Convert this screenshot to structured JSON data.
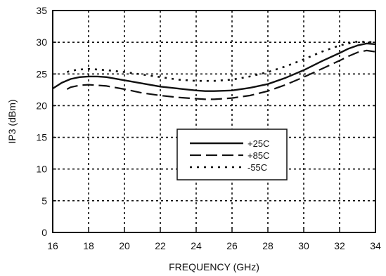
{
  "chart_data": {
    "type": "line",
    "xlabel": "FREQUENCY (GHz)",
    "ylabel": "IP3 (dBm)",
    "xlim": [
      16,
      34
    ],
    "ylim": [
      0,
      35
    ],
    "xticks": [
      16,
      18,
      20,
      22,
      24,
      26,
      28,
      30,
      32,
      34
    ],
    "yticks": [
      0,
      5,
      10,
      15,
      20,
      25,
      30,
      35
    ],
    "grid": true,
    "legend_position": "center-right",
    "series": [
      {
        "name": "+25C",
        "style": "solid",
        "x": [
          16,
          16.5,
          17,
          17.5,
          18,
          18.5,
          19,
          20,
          21,
          22,
          23,
          24,
          24.5,
          25,
          26,
          27,
          28,
          29,
          30,
          31,
          32,
          32.5,
          33,
          33.5,
          34
        ],
        "y": [
          22.7,
          23.6,
          24.2,
          24.5,
          24.6,
          24.6,
          24.5,
          24.0,
          23.5,
          23.0,
          22.7,
          22.4,
          22.3,
          22.3,
          22.4,
          22.8,
          23.4,
          24.4,
          25.6,
          27.0,
          28.3,
          29.0,
          29.5,
          29.8,
          29.7
        ]
      },
      {
        "name": "+85C",
        "style": "dashed",
        "x": [
          16.8,
          17,
          17.5,
          18,
          19,
          20,
          21,
          22,
          23,
          24,
          24.5,
          25,
          26,
          27,
          28,
          29,
          30,
          31,
          32,
          32.5,
          33,
          33.5,
          34
        ],
        "y": [
          22.6,
          22.9,
          23.2,
          23.3,
          23.1,
          22.6,
          22.0,
          21.6,
          21.3,
          21.1,
          21.0,
          21.0,
          21.2,
          21.6,
          22.3,
          23.3,
          24.5,
          25.8,
          27.1,
          27.8,
          28.4,
          28.7,
          28.5
        ]
      },
      {
        "name": "-55C",
        "style": "dotted",
        "x": [
          16.8,
          17,
          17.5,
          18,
          19,
          20,
          21,
          22,
          23,
          24,
          25,
          26,
          27,
          28,
          29,
          30,
          31,
          32,
          33,
          34
        ],
        "y": [
          25.3,
          25.5,
          25.7,
          25.8,
          25.6,
          25.3,
          24.9,
          24.5,
          24.1,
          23.9,
          23.9,
          24.1,
          24.6,
          25.3,
          26.2,
          27.3,
          28.5,
          29.5,
          30.1,
          30.0
        ]
      }
    ],
    "colors": {
      "line": "#111111",
      "grid": "#111111",
      "background": "#ffffff"
    }
  }
}
